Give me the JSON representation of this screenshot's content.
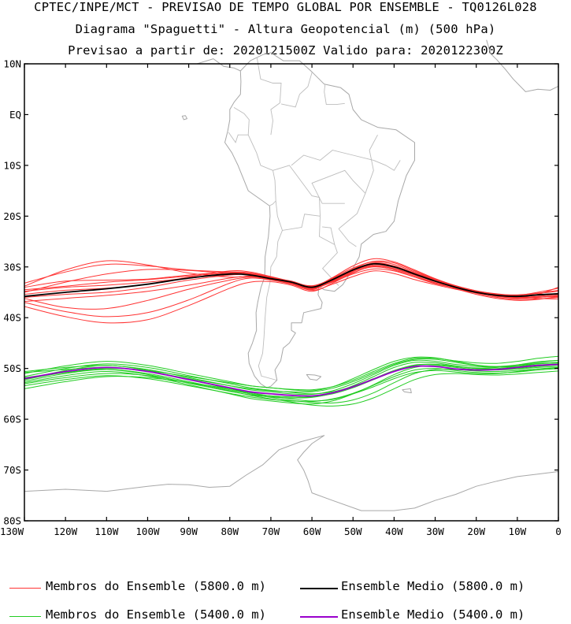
{
  "header": {
    "line1": "CPTEC/INPE/MCT - PREVISAO DE TEMPO GLOBAL POR ENSEMBLE - TQ0126L028",
    "line2": "Diagrama \"Spaguetti\" - Altura Geopotencial (m) (500 hPa)",
    "line3": "Previsao a partir de: 2020121500Z  Valido para: 2020122300Z"
  },
  "legend": {
    "red_members": "Membros do Ensemble (5800.0 m)",
    "black_mean": "Ensemble Medio (5800.0 m)",
    "green_members": "Membros do Ensemble (5400.0 m)",
    "purple_mean": "Ensemble Medio (5400.0 m)"
  },
  "colors": {
    "red_members": "#ff3333",
    "black_mean": "#000000",
    "green_members": "#22cc22",
    "purple_mean": "#9900cc",
    "coast": "#a8a8a8"
  },
  "chart_data": {
    "type": "line",
    "title": "",
    "xlabel": "",
    "ylabel": "",
    "xlim": [
      -130,
      0
    ],
    "ylim": [
      -80,
      10
    ],
    "x_ticks": [
      "130W",
      "120W",
      "110W",
      "100W",
      "90W",
      "80W",
      "70W",
      "60W",
      "50W",
      "40W",
      "30W",
      "20W",
      "10W",
      "0"
    ],
    "y_ticks": [
      "10N",
      "EQ",
      "10S",
      "20S",
      "30S",
      "40S",
      "50S",
      "60S",
      "70S",
      "80S"
    ],
    "x_tick_values": [
      -130,
      -120,
      -110,
      -100,
      -90,
      -80,
      -70,
      -60,
      -50,
      -40,
      -30,
      -20,
      -10,
      0
    ],
    "y_tick_values": [
      10,
      0,
      -10,
      -20,
      -30,
      -40,
      -50,
      -60,
      -70,
      -80
    ],
    "x": [
      -130,
      -120,
      -110,
      -100,
      -90,
      -80,
      -75,
      -70,
      -65,
      -60,
      -55,
      -50,
      -45,
      -40,
      -35,
      -30,
      -25,
      -20,
      -15,
      -10,
      -5,
      0
    ],
    "series": [
      {
        "name": "Ensemble Medio (5800.0 m)",
        "group": "mean5800",
        "values": [
          -35.8,
          -35.0,
          -34.3,
          -33.4,
          -32.2,
          -31.4,
          -31.6,
          -32.3,
          -33.0,
          -34.0,
          -32.5,
          -30.6,
          -29.4,
          -30.0,
          -31.4,
          -32.8,
          -34.0,
          -35.0,
          -35.6,
          -35.8,
          -35.5,
          -35.3
        ]
      },
      {
        "name": "Ensemble Medio (5400.0 m)",
        "group": "mean5400",
        "values": [
          -52.0,
          -50.6,
          -49.8,
          -50.6,
          -52.2,
          -53.8,
          -54.6,
          -55.0,
          -55.3,
          -55.4,
          -54.8,
          -53.6,
          -52.1,
          -50.6,
          -49.6,
          -49.6,
          -50.1,
          -50.3,
          -50.2,
          -49.8,
          -49.4,
          -49.2
        ]
      },
      {
        "group": "members5800",
        "values": [
          -34.5,
          -33.8,
          -33.0,
          -32.5,
          -31.8,
          -31.2,
          -31.4,
          -32.0,
          -33.0,
          -34.2,
          -32.8,
          -30.9,
          -29.8,
          -30.3,
          -31.6,
          -32.9,
          -33.9,
          -34.8,
          -35.4,
          -35.5,
          -35.2,
          -34.8
        ]
      },
      {
        "group": "members5800",
        "values": [
          -33.2,
          -31.0,
          -29.5,
          -29.8,
          -30.6,
          -31.0,
          -31.3,
          -32.1,
          -32.8,
          -33.8,
          -32.2,
          -30.2,
          -29.0,
          -29.5,
          -31.0,
          -32.5,
          -33.8,
          -34.8,
          -35.5,
          -35.8,
          -35.6,
          -35.2
        ]
      },
      {
        "group": "members5800",
        "values": [
          -37.0,
          -38.8,
          -39.8,
          -39.0,
          -36.5,
          -33.2,
          -32.2,
          -32.6,
          -33.4,
          -34.5,
          -32.6,
          -30.4,
          -28.9,
          -29.2,
          -30.8,
          -32.4,
          -33.7,
          -34.7,
          -35.4,
          -35.9,
          -36.2,
          -36.3
        ]
      },
      {
        "group": "members5800",
        "values": [
          -36.2,
          -38.0,
          -38.2,
          -36.6,
          -34.4,
          -32.6,
          -32.0,
          -32.4,
          -33.2,
          -34.3,
          -32.9,
          -31.1,
          -30.0,
          -30.6,
          -32.0,
          -33.3,
          -34.2,
          -35.0,
          -35.8,
          -36.2,
          -36.0,
          -35.6
        ]
      },
      {
        "group": "members5800",
        "values": [
          -35.0,
          -33.0,
          -31.4,
          -30.5,
          -30.7,
          -31.3,
          -31.5,
          -32.2,
          -33.0,
          -33.9,
          -32.4,
          -30.6,
          -29.3,
          -29.9,
          -31.2,
          -32.6,
          -33.8,
          -34.9,
          -35.7,
          -36.1,
          -36.0,
          -35.7
        ]
      },
      {
        "group": "members5800",
        "values": [
          -33.8,
          -30.6,
          -28.8,
          -29.6,
          -31.2,
          -32.0,
          -31.8,
          -32.3,
          -33.1,
          -34.0,
          -32.1,
          -29.8,
          -28.4,
          -29.0,
          -30.6,
          -32.3,
          -33.7,
          -34.7,
          -35.3,
          -35.6,
          -35.2,
          -34.6
        ]
      },
      {
        "group": "members5800",
        "values": [
          -36.8,
          -36.2,
          -35.6,
          -34.8,
          -33.6,
          -32.2,
          -31.9,
          -32.5,
          -33.3,
          -34.4,
          -32.7,
          -30.8,
          -29.6,
          -30.1,
          -31.4,
          -32.9,
          -34.1,
          -35.2,
          -36.0,
          -36.4,
          -36.3,
          -36.0
        ]
      },
      {
        "group": "members5800",
        "values": [
          -35.4,
          -34.6,
          -34.2,
          -33.4,
          -32.0,
          -30.8,
          -31.0,
          -31.9,
          -32.9,
          -34.1,
          -33.0,
          -31.4,
          -30.4,
          -30.8,
          -32.0,
          -33.2,
          -34.2,
          -35.1,
          -35.7,
          -35.9,
          -35.4,
          -34.0
        ]
      },
      {
        "group": "members5800",
        "values": [
          -34.0,
          -32.8,
          -32.6,
          -32.4,
          -31.6,
          -31.0,
          -31.2,
          -32.0,
          -32.9,
          -33.7,
          -32.3,
          -30.5,
          -29.2,
          -29.8,
          -31.2,
          -32.7,
          -33.9,
          -34.9,
          -35.5,
          -35.6,
          -35.0,
          -34.2
        ]
      },
      {
        "group": "members5800",
        "values": [
          -37.8,
          -39.8,
          -41.0,
          -40.4,
          -37.6,
          -34.2,
          -33.0,
          -32.9,
          -33.6,
          -34.8,
          -33.2,
          -31.2,
          -29.9,
          -30.4,
          -31.8,
          -33.1,
          -34.3,
          -35.4,
          -36.2,
          -36.6,
          -36.4,
          -35.8
        ]
      },
      {
        "group": "members5800",
        "values": [
          -36.0,
          -35.4,
          -35.0,
          -34.0,
          -32.6,
          -31.6,
          -31.5,
          -32.2,
          -33.1,
          -34.2,
          -32.5,
          -30.6,
          -29.4,
          -29.9,
          -31.3,
          -32.8,
          -34.0,
          -35.0,
          -35.7,
          -36.0,
          -35.8,
          -35.4
        ]
      },
      {
        "group": "members5800",
        "values": [
          -34.8,
          -34.0,
          -33.6,
          -33.0,
          -32.2,
          -31.5,
          -31.6,
          -32.3,
          -33.2,
          -34.6,
          -33.4,
          -31.9,
          -30.8,
          -31.3,
          -32.5,
          -33.5,
          -34.4,
          -35.1,
          -35.6,
          -35.9,
          -35.9,
          -35.8
        ]
      },
      {
        "group": "members5400",
        "values": [
          -52.5,
          -51.0,
          -50.2,
          -51.0,
          -52.6,
          -54.2,
          -55.0,
          -55.4,
          -55.6,
          -55.6,
          -55.0,
          -53.8,
          -52.2,
          -50.6,
          -49.4,
          -49.2,
          -49.6,
          -50.0,
          -50.0,
          -49.6,
          -49.1,
          -48.9
        ]
      },
      {
        "group": "members5400",
        "values": [
          -51.6,
          -50.0,
          -49.1,
          -49.8,
          -51.4,
          -53.0,
          -53.8,
          -54.3,
          -54.7,
          -55.0,
          -54.6,
          -53.5,
          -52.0,
          -50.4,
          -49.3,
          -49.2,
          -49.6,
          -49.9,
          -49.8,
          -49.3,
          -48.7,
          -48.4
        ]
      },
      {
        "group": "members5400",
        "values": [
          -53.4,
          -52.2,
          -51.4,
          -52.0,
          -53.4,
          -54.9,
          -55.6,
          -56.1,
          -56.4,
          -56.5,
          -56.0,
          -54.9,
          -53.3,
          -51.6,
          -50.3,
          -50.0,
          -50.4,
          -50.8,
          -50.9,
          -50.7,
          -50.3,
          -50.0
        ]
      },
      {
        "group": "members5400",
        "values": [
          -51.0,
          -49.5,
          -48.6,
          -49.4,
          -51.0,
          -52.6,
          -53.4,
          -53.8,
          -54.1,
          -54.2,
          -53.6,
          -52.3,
          -50.6,
          -49.0,
          -48.0,
          -48.0,
          -48.5,
          -48.9,
          -49.0,
          -48.6,
          -48.0,
          -47.6
        ]
      },
      {
        "group": "members5400",
        "values": [
          -52.8,
          -51.4,
          -50.6,
          -51.5,
          -53.2,
          -55.0,
          -55.9,
          -56.4,
          -56.8,
          -57.0,
          -56.4,
          -55.0,
          -53.2,
          -51.2,
          -49.8,
          -49.4,
          -49.8,
          -50.2,
          -50.3,
          -50.1,
          -49.8,
          -49.6
        ]
      },
      {
        "group": "members5400",
        "values": [
          -50.6,
          -49.8,
          -49.4,
          -50.2,
          -51.8,
          -53.4,
          -54.2,
          -54.6,
          -55.0,
          -55.1,
          -54.4,
          -53.0,
          -51.2,
          -49.4,
          -48.4,
          -48.6,
          -49.2,
          -49.6,
          -49.7,
          -49.4,
          -49.0,
          -48.8
        ]
      },
      {
        "group": "members5400",
        "values": [
          -54.0,
          -52.6,
          -51.6,
          -51.8,
          -52.8,
          -54.0,
          -54.8,
          -55.4,
          -56.0,
          -56.4,
          -56.1,
          -55.0,
          -53.6,
          -52.0,
          -50.8,
          -50.4,
          -50.7,
          -51.0,
          -51.0,
          -50.6,
          -50.1,
          -49.8
        ]
      },
      {
        "group": "members5400",
        "values": [
          -51.8,
          -50.8,
          -50.0,
          -50.4,
          -51.6,
          -52.8,
          -53.4,
          -53.8,
          -54.2,
          -54.4,
          -53.6,
          -52.0,
          -50.2,
          -48.6,
          -47.8,
          -47.9,
          -48.6,
          -49.3,
          -49.7,
          -49.6,
          -49.3,
          -49.1
        ]
      },
      {
        "group": "members5400",
        "values": [
          -52.2,
          -50.4,
          -49.4,
          -50.4,
          -52.2,
          -54.0,
          -55.0,
          -55.7,
          -56.3,
          -56.7,
          -56.8,
          -56.2,
          -54.8,
          -52.8,
          -51.0,
          -50.2,
          -50.2,
          -50.5,
          -50.6,
          -50.4,
          -50.1,
          -49.9
        ]
      },
      {
        "group": "members5400",
        "values": [
          -50.8,
          -50.2,
          -49.8,
          -50.6,
          -52.0,
          -53.4,
          -54.0,
          -54.4,
          -54.6,
          -54.6,
          -53.9,
          -52.6,
          -50.9,
          -49.2,
          -48.2,
          -48.2,
          -48.8,
          -49.4,
          -49.6,
          -49.3,
          -48.8,
          -48.4
        ]
      },
      {
        "group": "members5400",
        "values": [
          -53.0,
          -51.8,
          -51.0,
          -51.4,
          -52.8,
          -54.4,
          -55.3,
          -56.0,
          -56.6,
          -57.2,
          -57.4,
          -57.0,
          -55.8,
          -54.0,
          -52.2,
          -51.2,
          -51.0,
          -51.2,
          -51.3,
          -51.1,
          -50.8,
          -50.5
        ]
      },
      {
        "group": "members5400",
        "values": [
          -52.2,
          -50.8,
          -50.2,
          -51.2,
          -52.9,
          -54.5,
          -55.2,
          -55.6,
          -55.8,
          -55.7,
          -54.9,
          -53.4,
          -51.6,
          -49.8,
          -48.8,
          -48.9,
          -49.5,
          -50.0,
          -50.2,
          -50.0,
          -49.6,
          -49.3
        ]
      }
    ]
  }
}
